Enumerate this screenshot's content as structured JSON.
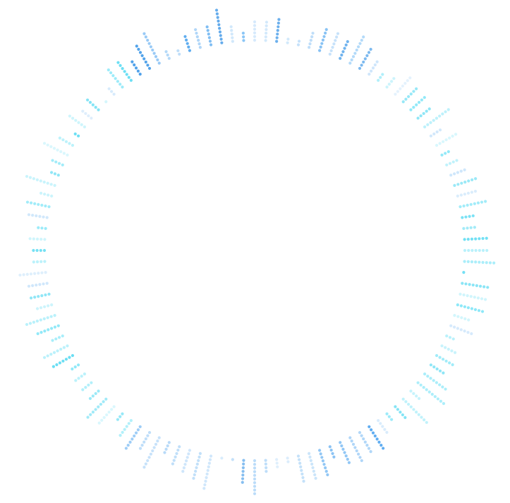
{
  "visualization": {
    "style": "radial dotted audio spectrum ring",
    "bar_count": 120,
    "dot_colors": [
      "#5aaaf0",
      "#7ec0f5",
      "#a9d3f7",
      "#cfe7fb",
      "#65ddf3",
      "#8ce8f8",
      "#bdf1fb",
      "#4a9ee9"
    ]
  }
}
